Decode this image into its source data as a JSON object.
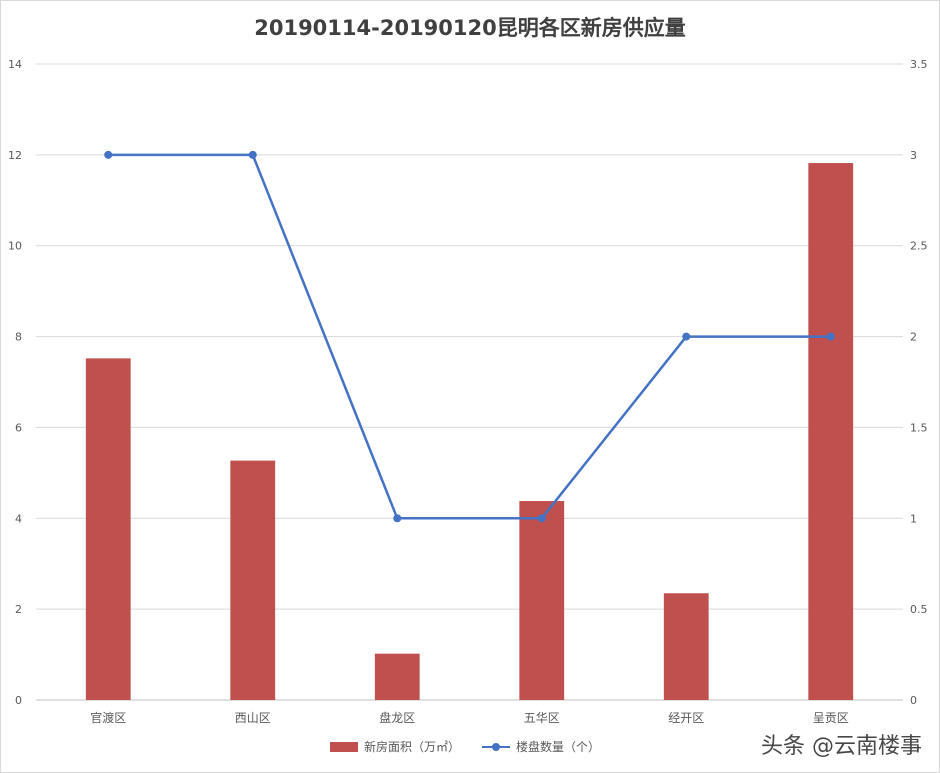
{
  "chart_data": {
    "type": "bar",
    "title": "20190114-20190120昆明各区新房供应量",
    "categories": [
      "官渡区",
      "西山区",
      "盘龙区",
      "五华区",
      "经开区",
      "呈贡区"
    ],
    "series": [
      {
        "name": "新房面积（万㎡）",
        "type": "bar",
        "axis": "left",
        "color": "#C0504D",
        "values": [
          7.52,
          5.27,
          1.02,
          4.38,
          2.35,
          11.82
        ]
      },
      {
        "name": "楼盘数量（个）",
        "type": "line",
        "axis": "right",
        "color": "#4472C4",
        "values": [
          3,
          3,
          1,
          1,
          2,
          2
        ]
      }
    ],
    "y_left": {
      "min": 0,
      "max": 14,
      "ticks": [
        "0",
        "2",
        "4",
        "6",
        "8",
        "10",
        "12",
        "14"
      ]
    },
    "y_right": {
      "min": 0,
      "max": 3.5,
      "ticks": [
        "0",
        "0.5",
        "1",
        "1.5",
        "2",
        "2.5",
        "3",
        "3.5"
      ]
    },
    "grid": true,
    "legend_position": "bottom"
  },
  "watermark": "头条 @云南楼事"
}
